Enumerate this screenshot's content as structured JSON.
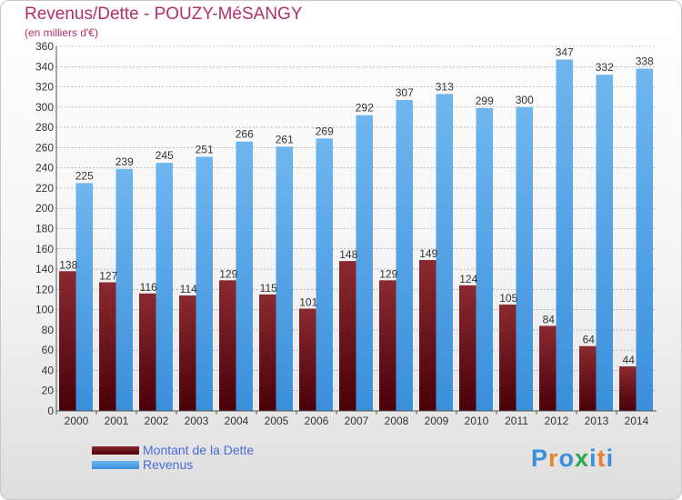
{
  "title": "Revenus/Dette - POUZY-MéSANGY",
  "subtitle": "(en milliers d'€)",
  "logo": {
    "text": "Proxiti",
    "colors": [
      "#3a8fdb",
      "#e9812d",
      "#3a8fdb",
      "#2aa84a",
      "#3a8fdb",
      "#e9812d",
      "#3a8fdb"
    ]
  },
  "legend": {
    "debt_label": "Montant de la Dette",
    "revenue_label": "Revenus"
  },
  "colors": {
    "debt_top": "#8a2a30",
    "debt_bottom": "#4a0008",
    "revenue_top": "#6fb6ee",
    "revenue_bottom": "#3a8fdb",
    "text": "#333333",
    "grid": "#999999"
  },
  "chart_data": {
    "type": "bar",
    "title": "Revenus/Dette - POUZY-MéSANGY",
    "ylabel": "(en milliers d'€)",
    "xlabel": "",
    "ylim": [
      0,
      360
    ],
    "ytick_step": 20,
    "grid": true,
    "legend_position": "bottom-left",
    "categories": [
      "2000",
      "2001",
      "2002",
      "2003",
      "2004",
      "2005",
      "2006",
      "2007",
      "2008",
      "2009",
      "2010",
      "2011",
      "2012",
      "2013",
      "2014"
    ],
    "series": [
      {
        "name": "Montant de la Dette",
        "values": [
          138,
          127,
          116,
          114,
          129,
          115,
          101,
          148,
          129,
          149,
          124,
          105,
          84,
          64,
          44
        ]
      },
      {
        "name": "Revenus",
        "values": [
          225,
          239,
          245,
          251,
          266,
          261,
          269,
          292,
          307,
          313,
          299,
          300,
          347,
          332,
          338
        ]
      }
    ]
  }
}
